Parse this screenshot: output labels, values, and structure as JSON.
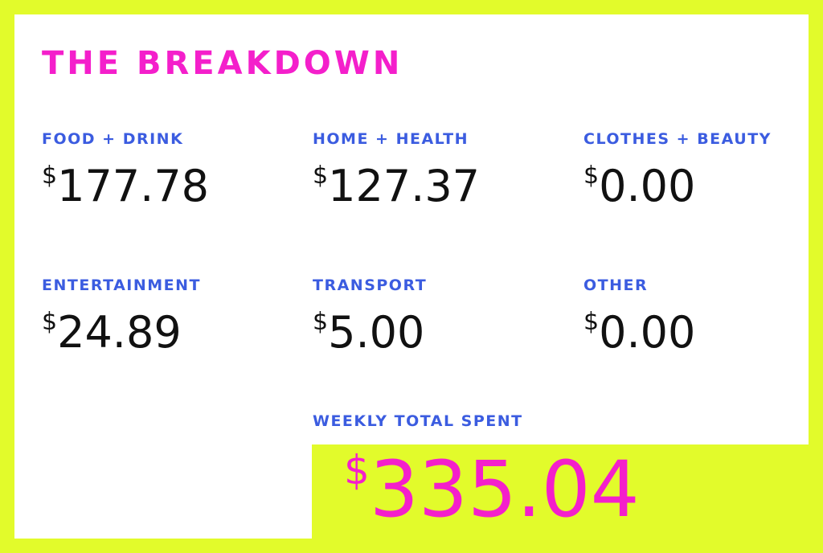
{
  "title": "THE BREAKDOWN",
  "categories": [
    {
      "label": "FOOD + DRINK",
      "currency": "$",
      "amount": "177.78"
    },
    {
      "label": "HOME + HEALTH",
      "currency": "$",
      "amount": "127.37"
    },
    {
      "label": "CLOTHES + BEAUTY",
      "currency": "$",
      "amount": "0.00"
    },
    {
      "label": "ENTERTAINMENT",
      "currency": "$",
      "amount": "24.89"
    },
    {
      "label": "TRANSPORT",
      "currency": "$",
      "amount": "5.00"
    },
    {
      "label": "OTHER",
      "currency": "$",
      "amount": "0.00"
    }
  ],
  "total": {
    "label": "WEEKLY TOTAL SPENT",
    "currency": "$",
    "amount": "335.04"
  }
}
